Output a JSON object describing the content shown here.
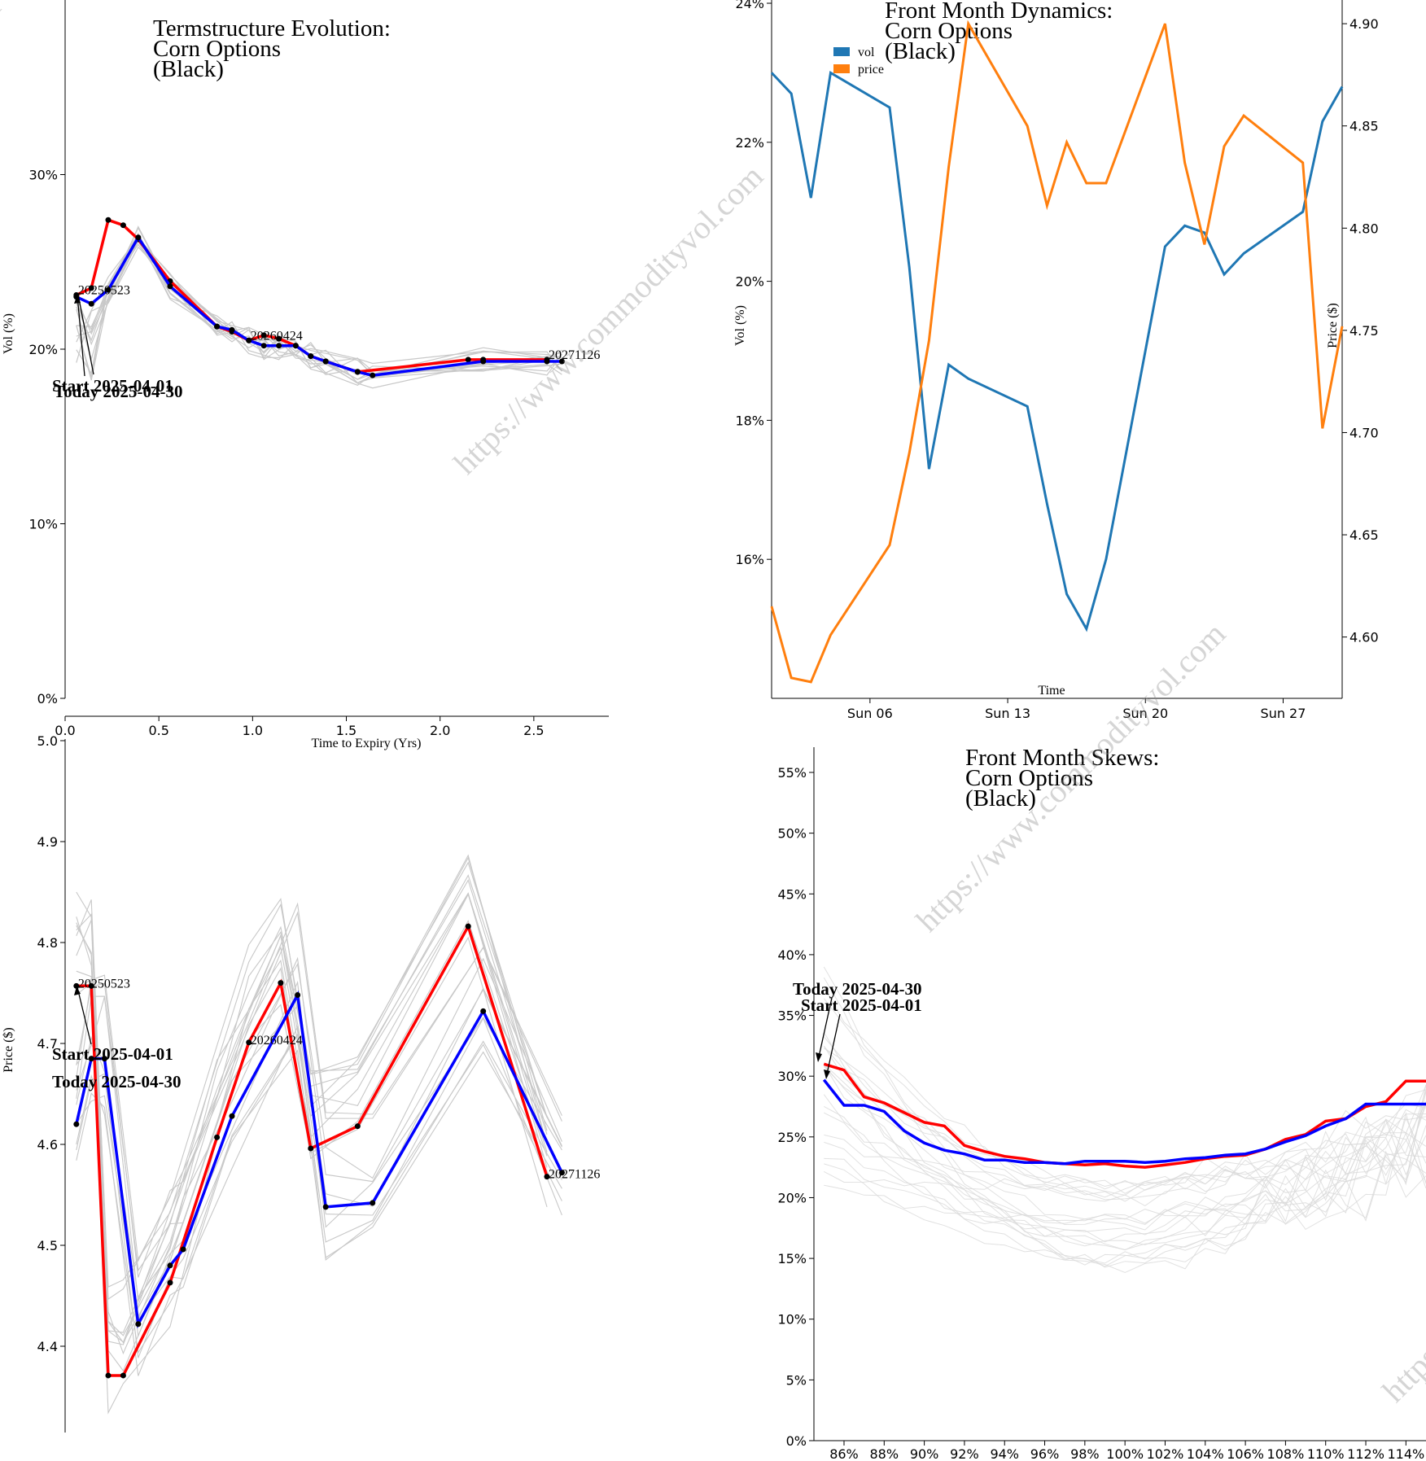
{
  "watermark": "https://www.commodityvol.com",
  "chart_data": [
    {
      "id": "termstructure",
      "type": "line",
      "title": [
        "Termstructure Evolution:",
        "Corn Options",
        "(Black)"
      ],
      "xlabel": "Time to Expiry (Yrs)",
      "ylabel": "Vol (%)",
      "xlim": [
        0,
        2.9
      ],
      "ylim": [
        0,
        40
      ],
      "xticks": [
        "0.0",
        "0.5",
        "1.0",
        "1.5",
        "2.0",
        "2.5"
      ],
      "yticks": [
        "0%",
        "10%",
        "20%",
        "30%"
      ],
      "annotations": [
        "Start 2025-04-01",
        "Today 2025-04-30"
      ],
      "expiry_labels": [
        "20250523",
        "20260424",
        "20271126"
      ],
      "series": [
        {
          "name": "Start 2025-04-01",
          "color": "#ff0000",
          "x": [
            0.06,
            0.14,
            0.23,
            0.31,
            0.39,
            0.56,
            0.81,
            0.89,
            0.98,
            1.06,
            1.14,
            1.23,
            1.31,
            1.39,
            1.56,
            2.15,
            2.23,
            2.57
          ],
          "y": [
            23.1,
            23.5,
            27.4,
            27.1,
            26.3,
            23.9,
            21.3,
            21.0,
            20.5,
            20.8,
            20.6,
            20.2,
            19.6,
            19.3,
            18.7,
            19.4,
            19.4,
            19.4
          ]
        },
        {
          "name": "Today 2025-04-30",
          "color": "#0000ff",
          "x": [
            0.06,
            0.14,
            0.23,
            0.39,
            0.56,
            0.81,
            0.89,
            0.98,
            1.06,
            1.14,
            1.23,
            1.31,
            1.39,
            1.56,
            1.64,
            2.23,
            2.57,
            2.65
          ],
          "y": [
            23.0,
            22.6,
            23.4,
            26.4,
            23.6,
            21.3,
            21.1,
            20.5,
            20.2,
            20.2,
            20.2,
            19.6,
            19.3,
            18.7,
            18.5,
            19.3,
            19.3,
            19.3
          ]
        }
      ]
    },
    {
      "id": "dynamics",
      "type": "line",
      "title": [
        "Front Month Dynamics:",
        "Corn Options",
        "(Black)"
      ],
      "xlabel": "Time",
      "ylabel": "Vol (%)",
      "y2label": "Price ($)",
      "xticks": [
        "Sun 06",
        "Sun 13",
        "Sun 20",
        "Sun 27"
      ],
      "xdomain": [
        "2025-04-01",
        "2025-04-30"
      ],
      "ylim": [
        14,
        24
      ],
      "y2lim": [
        4.57,
        4.91
      ],
      "yticks": [
        "16%",
        "18%",
        "20%",
        "22%",
        "24%"
      ],
      "y2ticks": [
        "4.60",
        "4.65",
        "4.70",
        "4.75",
        "4.80",
        "4.85",
        "4.90"
      ],
      "legend": [
        "vol",
        "price"
      ],
      "legend_position": "top-left",
      "dates": [
        "2025-04-01",
        "2025-04-02",
        "2025-04-03",
        "2025-04-04",
        "2025-04-07",
        "2025-04-08",
        "2025-04-09",
        "2025-04-10",
        "2025-04-11",
        "2025-04-14",
        "2025-04-15",
        "2025-04-16",
        "2025-04-17",
        "2025-04-18",
        "2025-04-21",
        "2025-04-22",
        "2025-04-23",
        "2025-04-24",
        "2025-04-25",
        "2025-04-28",
        "2025-04-29",
        "2025-04-30"
      ],
      "series": [
        {
          "name": "vol",
          "color": "#1f77b4",
          "axis": "left",
          "values": [
            23.0,
            22.7,
            21.2,
            23.0,
            22.5,
            20.2,
            17.3,
            18.8,
            18.6,
            18.2,
            16.8,
            15.5,
            15.0,
            16.0,
            20.5,
            20.8,
            20.7,
            20.1,
            20.4,
            21.0,
            22.3,
            22.8
          ]
        },
        {
          "name": "price",
          "color": "#ff7f0e",
          "axis": "right",
          "values": [
            4.615,
            4.58,
            4.578,
            4.601,
            4.645,
            4.69,
            4.745,
            4.83,
            4.9,
            4.85,
            4.811,
            4.842,
            4.822,
            4.822,
            4.9,
            4.832,
            4.792,
            4.84,
            4.855,
            4.832,
            4.702,
            4.752
          ]
        }
      ]
    },
    {
      "id": "prices",
      "type": "line",
      "xlabel": "",
      "ylabel": "Price ($)",
      "xlim": [
        0,
        2.9
      ],
      "ylim": [
        4.3,
        5.0
      ],
      "yticks": [
        "4.4",
        "4.5",
        "4.6",
        "4.7",
        "4.8",
        "4.9",
        "5.0"
      ],
      "annotations": [
        "Start 2025-04-01",
        "Today 2025-04-30"
      ],
      "expiry_labels": [
        "20250523",
        "20260424",
        "20271126"
      ],
      "series": [
        {
          "name": "Start 2025-04-01",
          "color": "#ff0000",
          "x": [
            0.06,
            0.14,
            0.23,
            0.31,
            0.56,
            0.81,
            0.98,
            1.15,
            1.31,
            1.56,
            2.15,
            2.57
          ],
          "y": [
            4.757,
            4.757,
            4.371,
            4.371,
            4.463,
            4.607,
            4.701,
            4.76,
            4.596,
            4.618,
            4.816,
            4.568
          ]
        },
        {
          "name": "Today 2025-04-30",
          "color": "#0000ff",
          "x": [
            0.06,
            0.14,
            0.21,
            0.39,
            0.56,
            0.63,
            0.89,
            1.24,
            1.39,
            1.64,
            2.23,
            2.65
          ],
          "y": [
            4.62,
            4.685,
            4.685,
            4.422,
            4.48,
            4.496,
            4.628,
            4.748,
            4.538,
            4.542,
            4.732,
            4.572
          ]
        }
      ]
    },
    {
      "id": "skews",
      "type": "line",
      "title": [
        "Front Month Skews:",
        "Corn Options",
        "(Black)"
      ],
      "xlabel": "",
      "ylabel": "",
      "xlim": [
        84.5,
        115
      ],
      "ylim": [
        0,
        57
      ],
      "xticks": [
        "86%",
        "88%",
        "90%",
        "92%",
        "94%",
        "96%",
        "98%",
        "100%",
        "102%",
        "104%",
        "106%",
        "108%",
        "110%",
        "112%",
        "114%"
      ],
      "yticks": [
        "0%",
        "5%",
        "10%",
        "15%",
        "20%",
        "25%",
        "30%",
        "35%",
        "40%",
        "45%",
        "50%",
        "55%"
      ],
      "annotations": [
        "Today 2025-04-30",
        "Start 2025-04-01"
      ],
      "strikes": [
        85,
        86,
        87,
        88,
        89,
        90,
        91,
        92,
        93,
        94,
        95,
        96,
        97,
        98,
        99,
        100,
        101,
        102,
        103,
        104,
        105,
        106,
        107,
        108,
        109,
        110,
        111,
        112,
        113,
        114,
        115
      ],
      "series": [
        {
          "name": "Today 2025-04-30",
          "color": "#ff0000",
          "values": [
            31.0,
            30.5,
            28.3,
            27.8,
            27.0,
            26.2,
            25.9,
            24.3,
            23.8,
            23.4,
            23.2,
            22.9,
            22.8,
            22.7,
            22.8,
            22.6,
            22.5,
            22.7,
            22.9,
            23.2,
            23.4,
            23.5,
            24.0,
            24.8,
            25.2,
            26.3,
            26.5,
            27.5,
            27.9,
            29.6,
            29.6
          ]
        },
        {
          "name": "Start 2025-04-01",
          "color": "#0000ff",
          "values": [
            29.7,
            27.6,
            27.6,
            27.1,
            25.5,
            24.5,
            23.9,
            23.6,
            23.1,
            23.1,
            22.9,
            22.9,
            22.8,
            23.0,
            23.0,
            23.0,
            22.9,
            23.0,
            23.2,
            23.3,
            23.5,
            23.6,
            24.0,
            24.6,
            25.1,
            25.9,
            26.5,
            27.7,
            27.7,
            27.7,
            27.7
          ]
        }
      ]
    }
  ]
}
